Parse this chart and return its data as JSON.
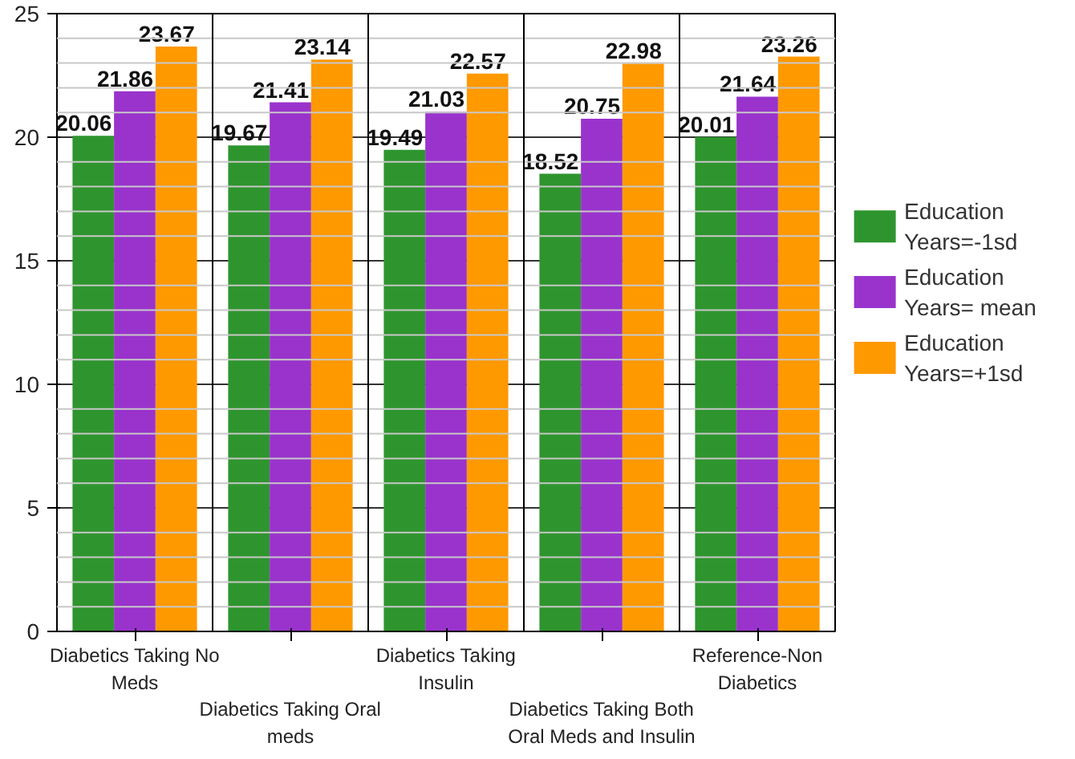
{
  "chart_data": {
    "type": "bar",
    "categories": [
      "Diabetics Taking No Meds",
      "Diabetics Taking Oral meds",
      "Diabetics Taking Insulin",
      "Diabetics Taking Both Oral Meds and Insulin",
      "Reference-Non Diabetics"
    ],
    "series": [
      {
        "name": "Education Years=-1sd",
        "color": "#2e952e",
        "values": [
          20.06,
          19.67,
          19.49,
          18.52,
          20.01
        ]
      },
      {
        "name": "Education Years= mean",
        "color": "#9933cc",
        "values": [
          21.86,
          21.41,
          21.03,
          20.75,
          21.64
        ]
      },
      {
        "name": "Education Years=+1sd",
        "color": "#ff9900",
        "values": [
          23.67,
          23.14,
          22.57,
          22.98,
          23.26
        ]
      }
    ],
    "ylim": [
      0,
      25
    ],
    "yticks": [
      0,
      5,
      10,
      15,
      20,
      25
    ],
    "grid": true,
    "legend": "right",
    "data_labels": true
  }
}
